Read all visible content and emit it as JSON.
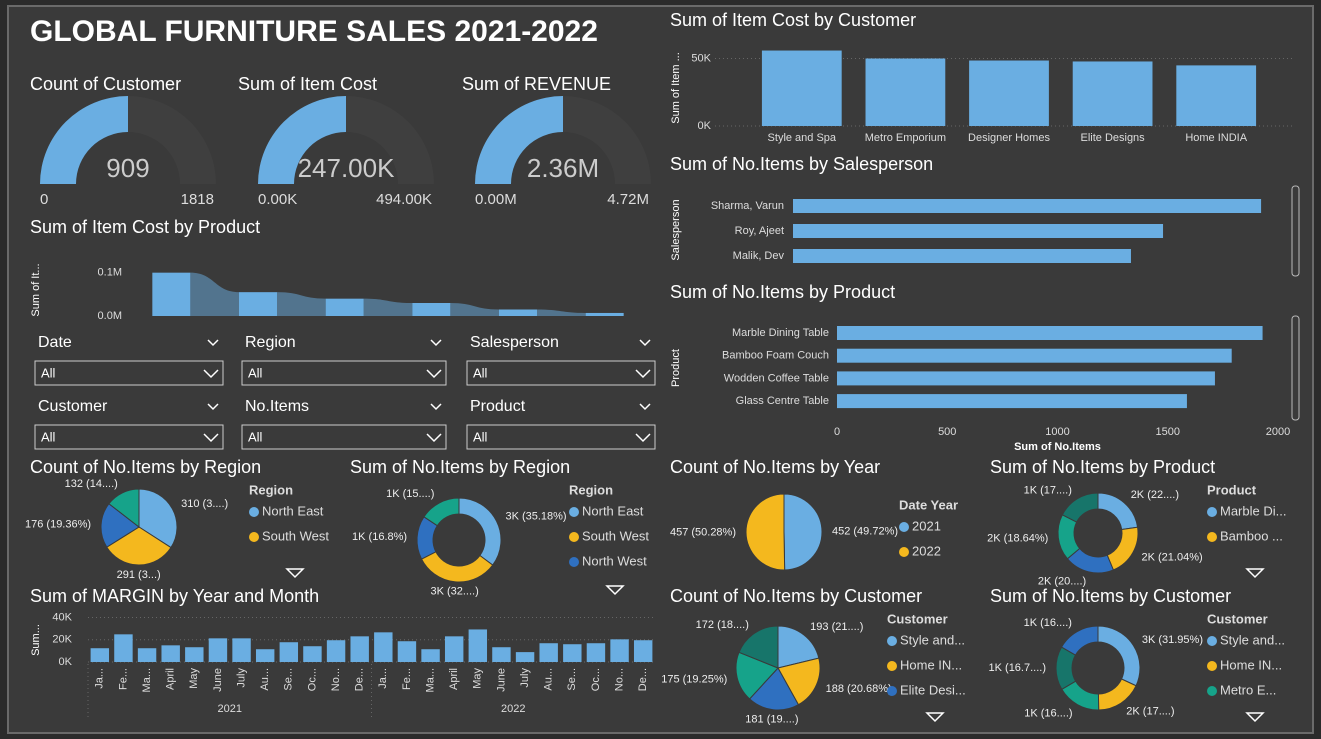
{
  "title": "GLOBAL FURNITURE SALES 2021-2022",
  "gauges": [
    {
      "title": "Count of Customer",
      "value": 909,
      "min": 0,
      "max": 1818,
      "color": "#6aaee2"
    },
    {
      "title": "Sum of Item Cost",
      "value": {
        "value": 247000,
        "label": "247.00K"
      },
      "min": {
        "value": 0,
        "label": "0.00K"
      },
      "max": {
        "value": 494000,
        "label": "494.00K"
      },
      "color": "#6aaee2"
    },
    {
      "title": "Sum of REVENUE",
      "value": {
        "value": 2360000,
        "label": "2.36M"
      },
      "min": {
        "value": 0,
        "label": "0.00M"
      },
      "max": {
        "value": 4720000,
        "label": "4.72M"
      },
      "color": "#6aaee2"
    }
  ],
  "slicers": [
    {
      "label": "Date",
      "value": "All"
    },
    {
      "label": "Region",
      "value": "All"
    },
    {
      "label": "Salesperson",
      "value": "All"
    },
    {
      "label": "Customer",
      "value": "All"
    },
    {
      "label": "No.Items",
      "value": "All"
    },
    {
      "label": "Product",
      "value": "All"
    }
  ],
  "chart_data": [
    {
      "type": "ribbon",
      "title": "Sum of Item Cost by Product",
      "ylabel": "Sum of It...",
      "values": [
        100000,
        55000,
        40000,
        30000,
        15000,
        7000
      ],
      "color": "#6aaee2",
      "ylim": [
        0,
        120000
      ],
      "yticks": [
        {
          "value": 0,
          "label": "0.0M"
        },
        {
          "value": 100000,
          "label": "0.1M"
        }
      ]
    },
    {
      "type": "bar",
      "title": "Sum of MARGIN by Year and Month",
      "ylabel": "Sum...",
      "categories": [
        "Ja...",
        "Fe...",
        "Ma...",
        "April",
        "May",
        "June",
        "July",
        "Au...",
        "Se...",
        "Oc...",
        "No...",
        "De...",
        "Ja...",
        "Fe...",
        "Ma...",
        "April",
        "May",
        "June",
        "July",
        "Au...",
        "Se...",
        "Oc...",
        "No...",
        "De..."
      ],
      "groups": [
        "2021",
        "2022"
      ],
      "values": [
        12400,
        24900,
        12400,
        15000,
        13300,
        21300,
        21300,
        11500,
        17800,
        14200,
        19600,
        23100,
        26700,
        18700,
        11500,
        23100,
        29300,
        13300,
        8900,
        16900,
        16000,
        16900,
        20400,
        19600
      ],
      "color": "#6aaee2",
      "ylim": [
        0,
        45000
      ],
      "yticks": [
        {
          "value": 0,
          "label": "0K"
        },
        {
          "value": 20000,
          "label": "20K"
        },
        {
          "value": 40000,
          "label": "40K"
        }
      ],
      "grid": true
    },
    {
      "type": "pie",
      "title": "Count of No.Items by Region",
      "legend_title": "Region",
      "categories": [
        "North East",
        "South West",
        null,
        null
      ],
      "values": [
        310,
        291,
        176,
        132
      ],
      "value_labels": [
        "310 (3....)",
        "291 (3...)",
        "176 (19.36%)",
        "132 (14....)"
      ],
      "colors": [
        "#6aaee2",
        "#f4b81e",
        "#2f70c0",
        "#16a38a"
      ]
    },
    {
      "type": "donut",
      "title": "Sum of No.Items by Region",
      "legend_title": "Region",
      "categories": [
        "North East",
        "South West",
        "North West",
        null
      ],
      "values": [
        2993,
        2750,
        1429,
        1336
      ],
      "value_labels": [
        "3K (35.18%)",
        "3K (32....)",
        "1K (16.8%)",
        "1K (15....)"
      ],
      "colors": [
        "#6aaee2",
        "#f4b81e",
        "#2f70c0",
        "#16a38a"
      ]
    },
    {
      "type": "bar",
      "title": "Sum of Item Cost by Customer",
      "ylabel": "Sum of Item ...",
      "categories": [
        "Style and Spa",
        "Metro Emporium",
        "Designer Homes",
        "Elite Designs",
        "Home INDIA"
      ],
      "values": [
        55900,
        50000,
        48500,
        47800,
        44900
      ],
      "color": "#6aaee2",
      "ylim": [
        0,
        60000
      ],
      "yticks": [
        {
          "value": 0,
          "label": "0K"
        },
        {
          "value": 50000,
          "label": "50K"
        }
      ],
      "grid": true
    },
    {
      "type": "hbar",
      "title": "Sum of No.Items by Salesperson",
      "ylabel": "Salesperson",
      "categories": [
        "Sharma, Varun",
        "Roy, Ajeet",
        "Malik, Dev"
      ],
      "values": [
        2072,
        1638,
        1496
      ],
      "color": "#6aaee2",
      "xlim": [
        0,
        2200
      ]
    },
    {
      "type": "hbar",
      "title": "Sum of No.Items by Product",
      "ylabel": "Product",
      "xlabel": "Sum of No.Items",
      "categories": [
        "Marble Dining Table",
        "Bamboo Foam Couch",
        "Wodden Coffee Table",
        "Glass Centre Table"
      ],
      "values": [
        1930,
        1790,
        1714,
        1587
      ],
      "color": "#6aaee2",
      "xlim": [
        0,
        2000
      ],
      "xticks": [
        0,
        500,
        1000,
        1500,
        2000
      ]
    },
    {
      "type": "pie",
      "title": "Count of No.Items by Year",
      "legend_title": "Date Year",
      "categories": [
        "2021",
        "2022"
      ],
      "values": [
        452,
        457
      ],
      "value_labels": [
        "452 (49.72%)",
        "457 (50.28%)"
      ],
      "colors": [
        "#6aaee2",
        "#f4b81e"
      ]
    },
    {
      "type": "donut",
      "title": "Sum of No.Items by Product",
      "legend_title": "Product",
      "categories": [
        "Marble Di...",
        "Bamboo ...",
        null,
        null,
        null
      ],
      "values": [
        1930,
        1790,
        1714,
        1587,
        1487
      ],
      "value_labels": [
        "2K (22....)",
        "2K (21.04%)",
        "2K (20....)",
        "2K (18.64%)",
        "1K (17....)"
      ],
      "colors": [
        "#6aaee2",
        "#f4b81e",
        "#2f70c0",
        "#16a38a",
        "#17756a"
      ]
    },
    {
      "type": "pie",
      "title": "Count of No.Items by Customer",
      "legend_title": "Customer",
      "categories": [
        "Style and...",
        "Home IN...",
        "Elite Desi...",
        null,
        null
      ],
      "values": [
        193,
        188,
        181,
        175,
        172
      ],
      "value_labels": [
        "193 (21....)",
        "188 (20.68%)",
        "181 (19....)",
        "175 (19.25%)",
        "172 (18....)"
      ],
      "colors": [
        "#6aaee2",
        "#f4b81e",
        "#2f70c0",
        "#16a38a",
        "#17756a"
      ]
    },
    {
      "type": "donut",
      "title": "Sum of No.Items by Customer",
      "legend_title": "Customer",
      "categories": [
        "Style and...",
        "Home IN...",
        "Metro E...",
        null,
        null
      ],
      "values": [
        2718,
        1514,
        1429,
        1425,
        1422
      ],
      "value_labels": [
        "3K (31.95%)",
        "2K (17....)",
        "1K (16....)",
        "1K (16.7....)",
        "1K (16....)"
      ],
      "colors": [
        "#6aaee2",
        "#f4b81e",
        "#16a38a",
        "#17756a",
        "#2f70c0"
      ]
    }
  ]
}
